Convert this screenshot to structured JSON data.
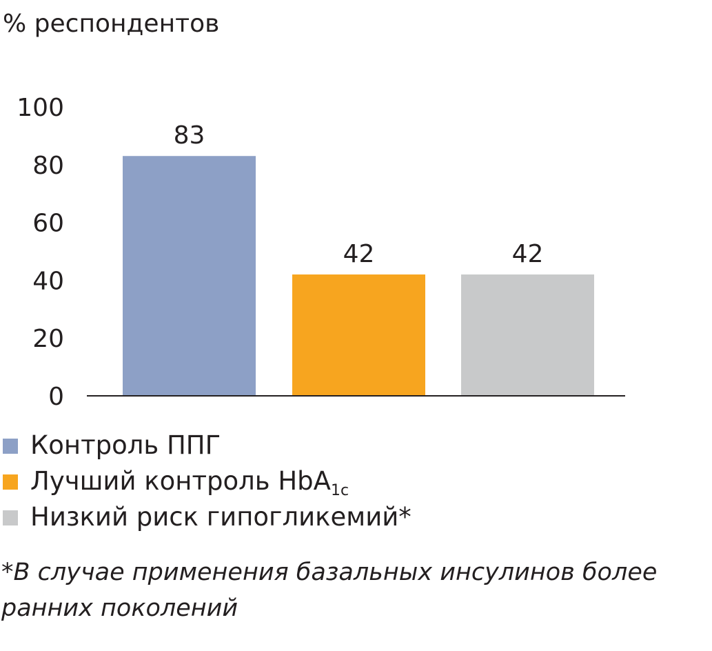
{
  "chart_data": {
    "type": "bar",
    "ylabel": "% респондентов",
    "ylim": [
      0,
      100
    ],
    "yticks": [
      0,
      20,
      40,
      60,
      80,
      100
    ],
    "categories": [
      "Контроль ППГ",
      "Лучший контроль HbA1c",
      "Низкий риск гипогликемий*"
    ],
    "values": [
      83,
      42,
      42
    ],
    "colors": [
      "#8da0c6",
      "#f7a51f",
      "#c8c9ca"
    ],
    "data_labels": [
      "83",
      "42",
      "42"
    ],
    "grid": false,
    "legend_position": "bottom-left"
  },
  "legend": {
    "items": [
      {
        "label": "Контроль ППГ",
        "color": "#8da0c6"
      },
      {
        "label_main": "Лучший контроль HbA",
        "label_sub": "1c",
        "color": "#f7a51f"
      },
      {
        "label": "Низкий риск гипогликемий*",
        "color": "#c8c9ca"
      }
    ]
  },
  "footnote": "*В случае применения базальных инсулинов более ранних поколений"
}
